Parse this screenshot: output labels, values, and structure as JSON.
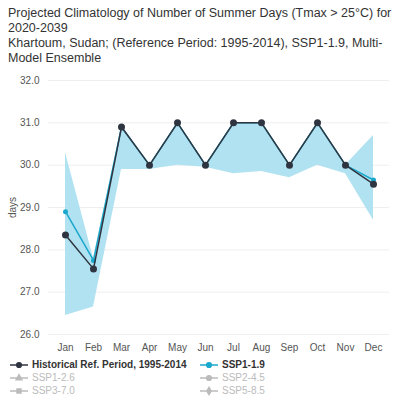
{
  "chart_data": {
    "type": "line",
    "title": "Projected Climatology of Number of Summer Days (Tmax > 25°C) for 2020-2039",
    "subtitle": "Khartoum, Sudan; (Reference Period: 1995-2014), SSP1-1.9, Multi-Model Ensemble",
    "y_label": "days",
    "categories": [
      "Jan",
      "Feb",
      "Mar",
      "Apr",
      "May",
      "Jun",
      "Jul",
      "Aug",
      "Sep",
      "Oct",
      "Nov",
      "Dec"
    ],
    "ylim": [
      26,
      32
    ],
    "yticks": [
      26,
      27,
      28,
      29,
      30,
      31,
      32
    ],
    "grid": true,
    "legend": "bottom",
    "series": [
      {
        "name": "Historical Ref. Period, 1995-2014",
        "color": "#2f3540",
        "marker": "circle",
        "values": [
          28.35,
          27.55,
          30.9,
          30.0,
          31.0,
          30.0,
          31.0,
          31.0,
          30.0,
          31.0,
          30.0,
          29.55
        ]
      },
      {
        "name": "SSP1-1.9",
        "color": "#1aa8cc",
        "marker": "circle",
        "values": [
          28.9,
          27.75,
          30.9,
          30.0,
          31.0,
          30.0,
          31.0,
          31.0,
          30.0,
          31.0,
          30.0,
          29.65
        ],
        "band_color": "#a8dff0",
        "lower": [
          26.45,
          26.65,
          29.9,
          29.9,
          30.0,
          29.95,
          29.8,
          29.85,
          29.7,
          30.0,
          29.8,
          28.7
        ],
        "upper": [
          30.3,
          27.8,
          30.9,
          30.0,
          31.0,
          30.0,
          31.0,
          31.0,
          30.0,
          31.0,
          30.0,
          30.7
        ]
      },
      {
        "name": "SSP1-2.6",
        "color": "#bbbbbb",
        "marker": "triangle",
        "values": [
          null,
          null,
          null,
          null,
          null,
          null,
          null,
          null,
          null,
          null,
          null,
          null
        ]
      },
      {
        "name": "SSP2-4.5",
        "color": "#bbbbbb",
        "marker": "circle",
        "values": [
          null,
          null,
          null,
          null,
          null,
          null,
          null,
          null,
          null,
          null,
          null,
          null
        ]
      },
      {
        "name": "SSP3-7.0",
        "color": "#bbbbbb",
        "marker": "square",
        "values": [
          null,
          null,
          null,
          null,
          null,
          null,
          null,
          null,
          null,
          null,
          null,
          null
        ]
      },
      {
        "name": "SSP5-8.5",
        "color": "#bbbbbb",
        "marker": "diamond",
        "values": [
          null,
          null,
          null,
          null,
          null,
          null,
          null,
          null,
          null,
          null,
          null,
          null
        ]
      }
    ]
  }
}
